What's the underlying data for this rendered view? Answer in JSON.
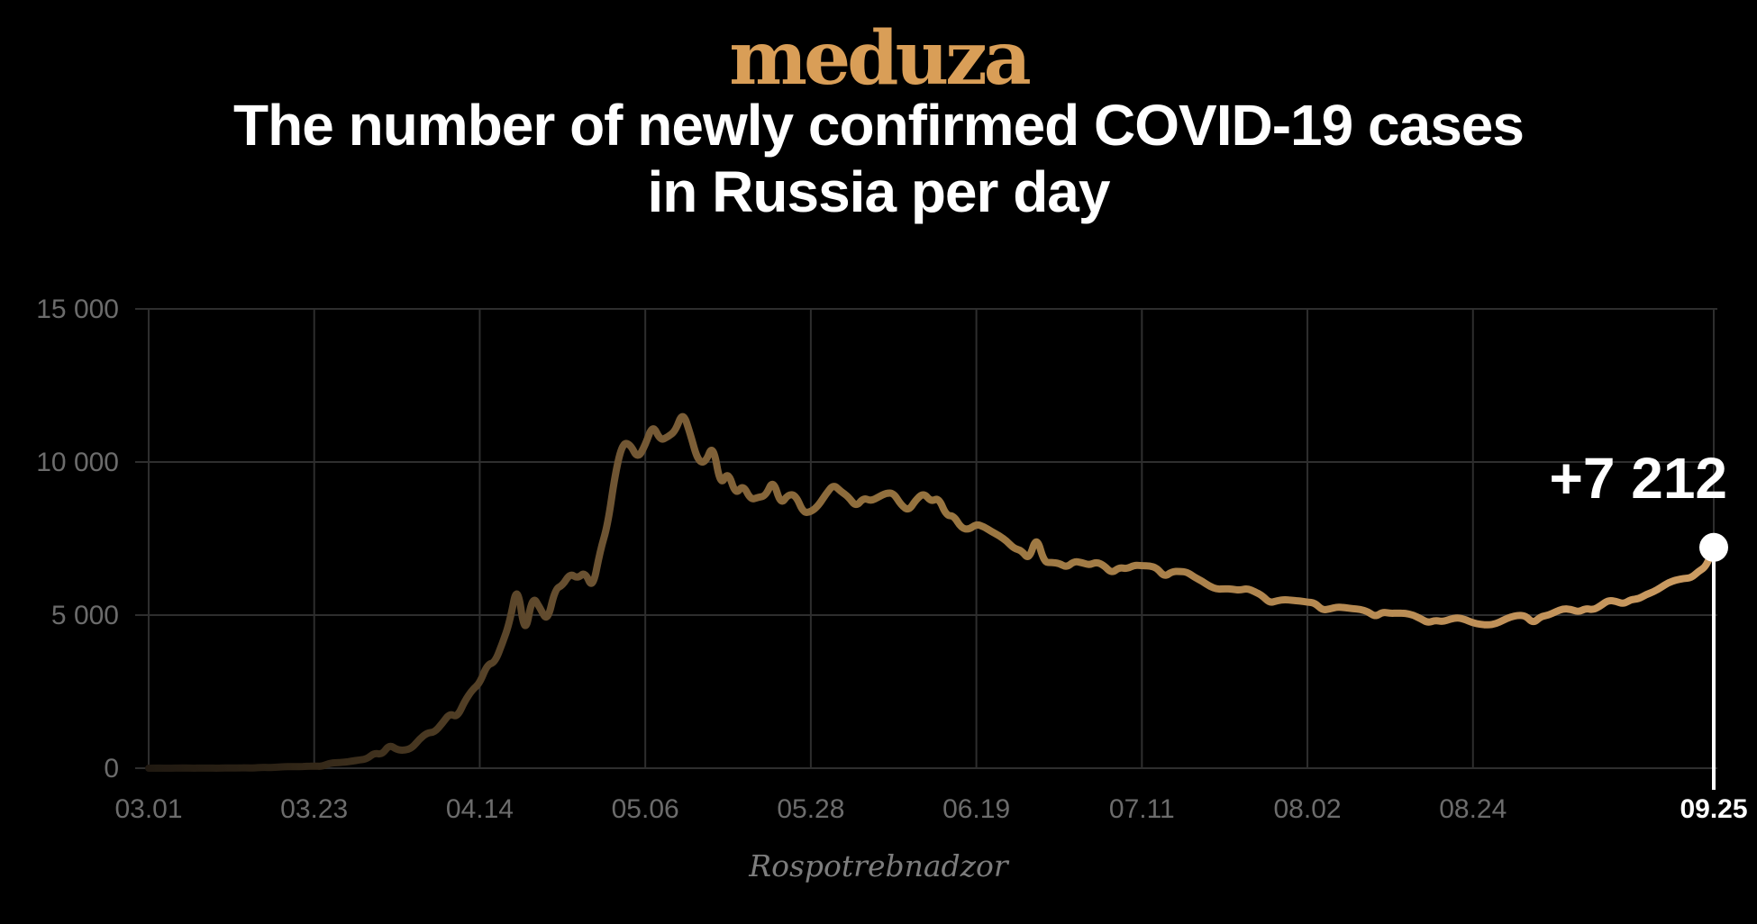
{
  "header": {
    "logo_text": "meduza",
    "title_line1": "The number of newly confirmed COVID-19 cases",
    "title_line2": "in Russia per day"
  },
  "footer": {
    "source_label": "Rospotrebnadzor"
  },
  "colors": {
    "background": "#000000",
    "accent_gold": "#d99e57",
    "title_text": "#ffffff",
    "grid": "#2e2e2e",
    "axis_label": "#6c6c6c",
    "highlight_label": "#ffffff",
    "marker": "#ffffff",
    "drop_line": "#ffffff",
    "line_gradient": [
      {
        "offset": 0.0,
        "color": "#201911"
      },
      {
        "offset": 0.08,
        "color": "#2c2215"
      },
      {
        "offset": 0.18,
        "color": "#4a3922"
      },
      {
        "offset": 0.28,
        "color": "#6b5232"
      },
      {
        "offset": 0.38,
        "color": "#846439"
      },
      {
        "offset": 0.5,
        "color": "#97743f"
      },
      {
        "offset": 0.62,
        "color": "#a67e48"
      },
      {
        "offset": 0.75,
        "color": "#b68a52"
      },
      {
        "offset": 0.88,
        "color": "#c2925a"
      },
      {
        "offset": 1.0,
        "color": "#cc9c62"
      }
    ]
  },
  "chart_data": {
    "type": "line",
    "title": "The number of newly confirmed COVID-19 cases in Russia per day",
    "source": "Rospotrebnadzor",
    "grid": true,
    "legend": "none",
    "ylim": [
      0,
      15000
    ],
    "y_ticks": [
      {
        "value": 0,
        "label": "0"
      },
      {
        "value": 5000,
        "label": "5 000"
      },
      {
        "value": 10000,
        "label": "10 000"
      },
      {
        "value": 15000,
        "label": "15 000"
      }
    ],
    "x_ticks": [
      {
        "label": "03.01",
        "day": 0
      },
      {
        "label": "03.23",
        "day": 22
      },
      {
        "label": "04.14",
        "day": 44
      },
      {
        "label": "05.06",
        "day": 66
      },
      {
        "label": "05.28",
        "day": 88
      },
      {
        "label": "06.19",
        "day": 110
      },
      {
        "label": "07.11",
        "day": 132
      },
      {
        "label": "08.02",
        "day": 154
      },
      {
        "label": "08.24",
        "day": 176
      },
      {
        "label": "09.25",
        "day": 208,
        "highlight": true
      }
    ],
    "start_date": "03.01",
    "end_date": "09.25",
    "total_days": 208,
    "last_point": {
      "date": "09.25",
      "value": 7212,
      "label": "+7 212"
    },
    "series": [
      {
        "name": "Daily new confirmed COVID-19 cases",
        "values": [
          0,
          3,
          1,
          0,
          3,
          6,
          1,
          3,
          3,
          0,
          8,
          6,
          11,
          14,
          4,
          30,
          21,
          33,
          52,
          54,
          53,
          61,
          71,
          57,
          163,
          182,
          196,
          228,
          270,
          302,
          501,
          440,
          771,
          601,
          582,
          658,
          954,
          1154,
          1175,
          1459,
          1786,
          1667,
          2186,
          2558,
          2774,
          3388,
          3448,
          4070,
          4785,
          6060,
          4268,
          5642,
          5236,
          4774,
          5849,
          5966,
          6361,
          6198,
          6411,
          5841,
          7099,
          7933,
          9623,
          10633,
          10581,
          10102,
          10559,
          11231,
          10699,
          10817,
          11012,
          11656,
          10899,
          10028,
          9974,
          10598,
          9200,
          9709,
          8926,
          9263,
          8764,
          8849,
          8894,
          9434,
          8599,
          8946,
          8915,
          8338,
          8371,
          8572,
          8952,
          9268,
          9035,
          8863,
          8536,
          8831,
          8726,
          8855,
          8984,
          8985,
          8595,
          8404,
          8779,
          8987,
          8706,
          8835,
          8246,
          8248,
          7843,
          7790,
          7972,
          7889,
          7728,
          7600,
          7425,
          7176,
          7113,
          6800,
          7600,
          6720,
          6719,
          6693,
          6556,
          6760,
          6718,
          6632,
          6736,
          6611,
          6368,
          6562,
          6509,
          6635,
          6611,
          6615,
          6537,
          6248,
          6422,
          6428,
          6406,
          6234,
          6109,
          5940,
          5842,
          5862,
          5848,
          5811,
          5871,
          5765,
          5635,
          5395,
          5475,
          5509,
          5482,
          5462,
          5427,
          5394,
          5159,
          5204,
          5267,
          5241,
          5212,
          5189,
          5118,
          4945,
          5102,
          5057,
          5065,
          5061,
          5005,
          4892,
          4748,
          4828,
          4785,
          4870,
          4921,
          4852,
          4744,
          4696,
          4676,
          4711,
          4829,
          4941,
          4993,
          4980,
          4729,
          4952,
          4995,
          5110,
          5205,
          5195,
          5099,
          5218,
          5172,
          5310,
          5488,
          5449,
          5361,
          5509,
          5529,
          5670,
          5762,
          5905,
          6065,
          6148,
          6196,
          6215,
          6431,
          6595,
          7212
        ]
      }
    ]
  }
}
